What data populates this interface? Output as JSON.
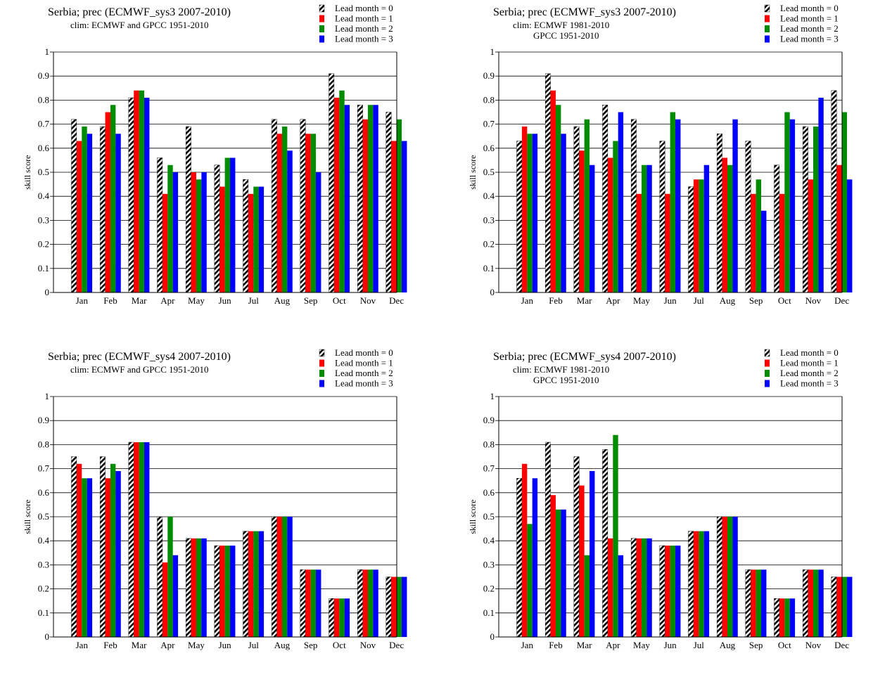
{
  "chart_data": [
    {
      "type": "bar",
      "title": "Serbia; prec (ECMWF_sys3 2007-2010)",
      "subtitle": [
        "clim: ECMWF and GPCC 1951-2010"
      ],
      "ylabel": "skill  score",
      "ylim": [
        0,
        1
      ],
      "yticks": [
        "0",
        "0.1",
        "0.2",
        "0.3",
        "0.4",
        "0.5",
        "0.6",
        "0.7",
        "0.8",
        "0.9",
        "1"
      ],
      "categories": [
        "Jan",
        "Feb",
        "Mar",
        "Apr",
        "May",
        "Jun",
        "Jul",
        "Aug",
        "Sep",
        "Oct",
        "Nov",
        "Dec"
      ],
      "grid": true,
      "legend_position": "top-right",
      "series": [
        {
          "name": "Lead month = 0",
          "values": [
            0.72,
            0.69,
            0.81,
            0.56,
            0.69,
            0.53,
            0.47,
            0.72,
            0.72,
            0.91,
            0.78,
            0.75
          ]
        },
        {
          "name": "Lead month = 1",
          "values": [
            0.63,
            0.75,
            0.84,
            0.41,
            0.5,
            0.44,
            0.41,
            0.66,
            0.66,
            0.81,
            0.72,
            0.63
          ]
        },
        {
          "name": "Lead month = 2",
          "values": [
            0.69,
            0.78,
            0.84,
            0.53,
            0.47,
            0.56,
            0.44,
            0.69,
            0.66,
            0.84,
            0.78,
            0.72
          ]
        },
        {
          "name": "Lead month = 3",
          "values": [
            0.66,
            0.66,
            0.81,
            0.5,
            0.5,
            0.56,
            0.44,
            0.59,
            0.5,
            0.78,
            0.78,
            0.63
          ]
        }
      ]
    },
    {
      "type": "bar",
      "title": "Serbia; prec (ECMWF_sys3 2007-2010)",
      "subtitle": [
        "clim: ECMWF 1981-2010",
        "GPCC 1951-2010"
      ],
      "ylabel": "skill  score",
      "ylim": [
        0,
        1
      ],
      "yticks": [
        "0",
        "0.1",
        "0.2",
        "0.3",
        "0.4",
        "0.5",
        "0.6",
        "0.7",
        "0.8",
        "0.9",
        "1"
      ],
      "categories": [
        "Jan",
        "Feb",
        "Mar",
        "Apr",
        "May",
        "Jun",
        "Jul",
        "Aug",
        "Sep",
        "Oct",
        "Nov",
        "Dec"
      ],
      "grid": true,
      "legend_position": "top-right",
      "series": [
        {
          "name": "Lead month = 0",
          "values": [
            0.63,
            0.91,
            0.69,
            0.78,
            0.72,
            0.63,
            0.44,
            0.66,
            0.63,
            0.53,
            0.69,
            0.84
          ]
        },
        {
          "name": "Lead month = 1",
          "values": [
            0.69,
            0.84,
            0.59,
            0.56,
            0.41,
            0.41,
            0.47,
            0.56,
            0.41,
            0.41,
            0.47,
            0.53
          ]
        },
        {
          "name": "Lead month = 2",
          "values": [
            0.66,
            0.78,
            0.72,
            0.63,
            0.53,
            0.75,
            0.47,
            0.53,
            0.47,
            0.75,
            0.69,
            0.75
          ]
        },
        {
          "name": "Lead month = 3",
          "values": [
            0.66,
            0.66,
            0.53,
            0.75,
            0.53,
            0.72,
            0.53,
            0.72,
            0.34,
            0.72,
            0.81,
            0.47
          ]
        }
      ]
    },
    {
      "type": "bar",
      "title": "Serbia; prec (ECMWF_sys4 2007-2010)",
      "subtitle": [
        "clim: ECMWF and GPCC 1951-2010"
      ],
      "ylabel": "skill  score",
      "ylim": [
        0,
        1
      ],
      "yticks": [
        "0",
        "0.1",
        "0.2",
        "0.3",
        "0.4",
        "0.5",
        "0.6",
        "0.7",
        "0.8",
        "0.9",
        "1"
      ],
      "categories": [
        "Jan",
        "Feb",
        "Mar",
        "Apr",
        "May",
        "Jun",
        "Jul",
        "Aug",
        "Sep",
        "Oct",
        "Nov",
        "Dec"
      ],
      "grid": true,
      "legend_position": "top-right",
      "series": [
        {
          "name": "Lead month = 0",
          "values": [
            0.75,
            0.75,
            0.81,
            0.5,
            0.41,
            0.38,
            0.44,
            0.5,
            0.28,
            0.16,
            0.28,
            0.25
          ]
        },
        {
          "name": "Lead month = 1",
          "values": [
            0.72,
            0.66,
            0.81,
            0.31,
            0.41,
            0.38,
            0.44,
            0.5,
            0.28,
            0.16,
            0.28,
            0.25
          ]
        },
        {
          "name": "Lead month = 2",
          "values": [
            0.66,
            0.72,
            0.81,
            0.5,
            0.41,
            0.38,
            0.44,
            0.5,
            0.28,
            0.16,
            0.28,
            0.25
          ]
        },
        {
          "name": "Lead month = 3",
          "values": [
            0.66,
            0.69,
            0.81,
            0.34,
            0.41,
            0.38,
            0.44,
            0.5,
            0.28,
            0.16,
            0.28,
            0.25
          ]
        }
      ]
    },
    {
      "type": "bar",
      "title": "Serbia; prec (ECMWF_sys4 2007-2010)",
      "subtitle": [
        "clim: ECMWF 1981-2010",
        "GPCC 1951-2010"
      ],
      "ylabel": "skill  score",
      "ylim": [
        0,
        1
      ],
      "yticks": [
        "0",
        "0.1",
        "0.2",
        "0.3",
        "0.4",
        "0.5",
        "0.6",
        "0.7",
        "0.8",
        "0.9",
        "1"
      ],
      "categories": [
        "Jan",
        "Feb",
        "Mar",
        "Apr",
        "May",
        "Jun",
        "Jul",
        "Aug",
        "Sep",
        "Oct",
        "Nov",
        "Dec"
      ],
      "grid": true,
      "legend_position": "top-right",
      "series": [
        {
          "name": "Lead month = 0",
          "values": [
            0.66,
            0.81,
            0.75,
            0.78,
            0.41,
            0.38,
            0.44,
            0.5,
            0.28,
            0.16,
            0.28,
            0.25
          ]
        },
        {
          "name": "Lead month = 1",
          "values": [
            0.72,
            0.59,
            0.63,
            0.41,
            0.41,
            0.38,
            0.44,
            0.5,
            0.28,
            0.16,
            0.28,
            0.25
          ]
        },
        {
          "name": "Lead month = 2",
          "values": [
            0.47,
            0.53,
            0.34,
            0.84,
            0.41,
            0.38,
            0.44,
            0.5,
            0.28,
            0.16,
            0.28,
            0.25
          ]
        },
        {
          "name": "Lead month = 3",
          "values": [
            0.66,
            0.53,
            0.69,
            0.34,
            0.41,
            0.38,
            0.44,
            0.5,
            0.28,
            0.16,
            0.28,
            0.25
          ]
        }
      ]
    }
  ],
  "series_colors": [
    "#000000",
    "#ff0000",
    "#008c00",
    "#0000ff"
  ],
  "series_fill_style": [
    "hatched",
    "solid",
    "solid",
    "solid"
  ]
}
